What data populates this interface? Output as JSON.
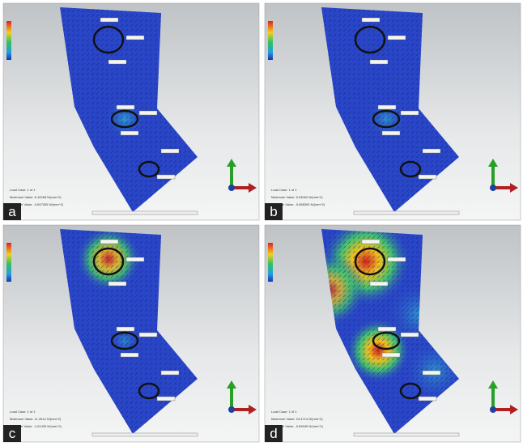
{
  "panels": [
    {
      "label": "a",
      "load_case": "Load Case: 1 of 1",
      "maximum": "Maximum Value: 6.10268 N/(mm^2)",
      "minimum": "Minimum Value: -0.607005 N/(mm^2)"
    },
    {
      "label": "b",
      "load_case": "Load Case: 1 of 1",
      "maximum": "Maximum Value: 5.03062 N/(mm^2)",
      "minimum": "Minimum Value: -0.568393 N/(mm^2)"
    },
    {
      "label": "c",
      "load_case": "Load Case: 1 of 1",
      "maximum": "Maximum Value: 11.2614 N/(mm^2)",
      "minimum": "Minimum Value: -1.51433 N/(mm^2)"
    },
    {
      "label": "d",
      "load_case": "Load Case: 1 of 1",
      "maximum": "Maximum Value: 24.4714 N/(mm^2)",
      "minimum": "Minimum Value: -0.65045 N/(mm^2)"
    }
  ]
}
